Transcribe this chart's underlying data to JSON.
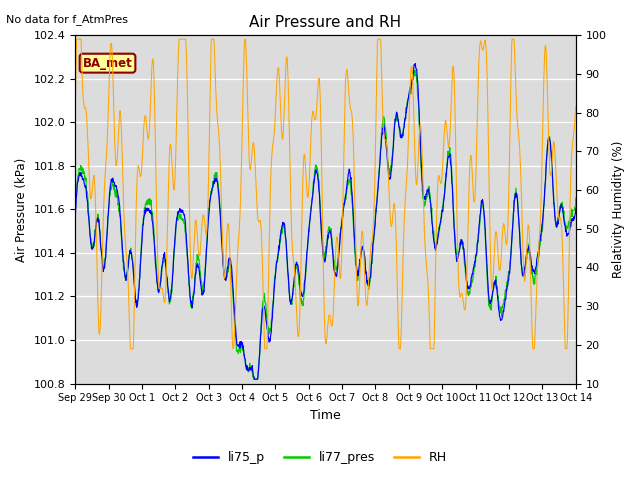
{
  "title": "Air Pressure and RH",
  "top_left_text": "No data for f_AtmPres",
  "xlabel": "Time",
  "ylabel_left": "Air Pressure (kPa)",
  "ylabel_right": "Relativity Humidity (%)",
  "ylim_left": [
    100.8,
    102.4
  ],
  "ylim_right": [
    10,
    100
  ],
  "yticks_left": [
    100.8,
    101.0,
    101.2,
    101.4,
    101.6,
    101.8,
    102.0,
    102.2,
    102.4
  ],
  "yticks_right": [
    10,
    20,
    30,
    40,
    50,
    60,
    70,
    80,
    90,
    100
  ],
  "xtick_labels": [
    "Sep 29",
    "Sep 30",
    "Oct 1",
    "Oct 2",
    "Oct 3",
    "Oct 4",
    "Oct 5",
    "Oct 6",
    "Oct 7",
    "Oct 8",
    "Oct 9",
    "Oct 10",
    "Oct 11",
    "Oct 12",
    "Oct 13",
    "Oct 14"
  ],
  "color_li75": "#0000ff",
  "color_li77": "#00cc00",
  "color_rh": "#ffa500",
  "legend_label_li75": "li75_p",
  "legend_label_li77": "li77_pres",
  "legend_label_rh": "RH",
  "ba_met_label": "BA_met",
  "ba_met_bg": "#ffff99",
  "ba_met_border": "#8b0000",
  "plot_bg": "#dcdcdc",
  "grid_color": "#ffffff",
  "n_days": 15,
  "n_points": 1440,
  "seed": 42
}
